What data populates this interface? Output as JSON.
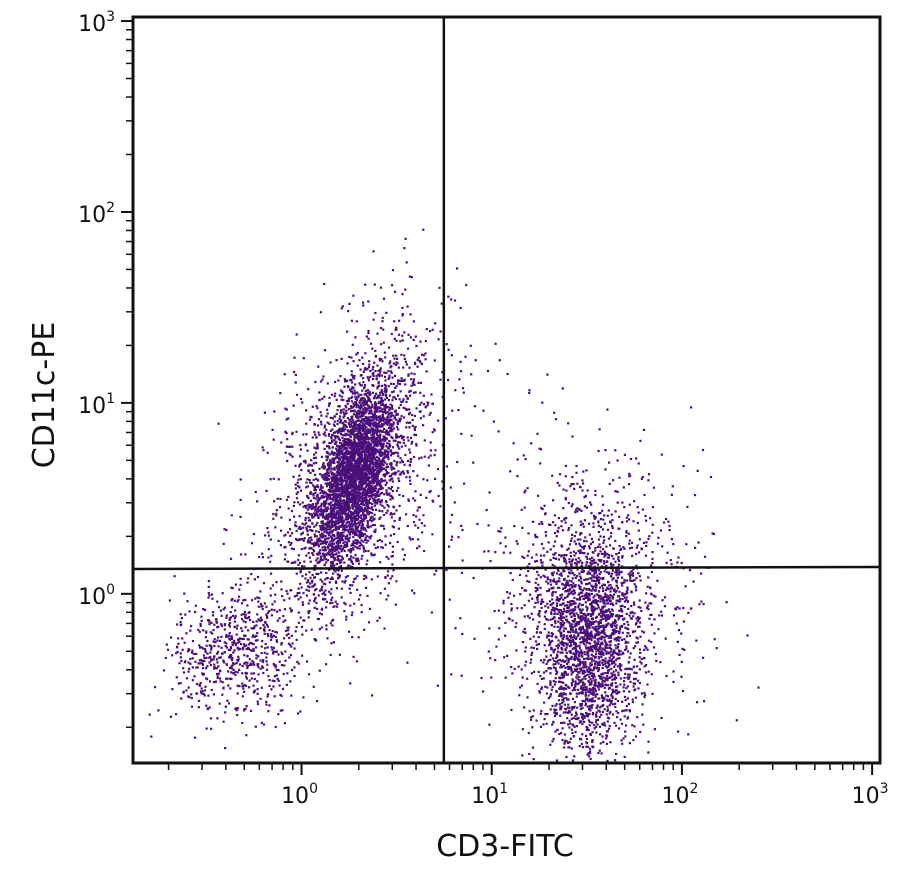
{
  "chart_data": {
    "type": "scatter",
    "subtype": "flow-cytometry-dot-plot",
    "xlabel": "CD3-FITC",
    "ylabel": "CD11c-PE",
    "x_scale": "log",
    "y_scale": "log",
    "xlim": [
      0.13,
      1100
    ],
    "ylim": [
      0.13,
      1050
    ],
    "x_ticks": [
      {
        "value": 1,
        "base": "10",
        "exp": "0"
      },
      {
        "value": 10,
        "base": "10",
        "exp": "1"
      },
      {
        "value": 100,
        "base": "10",
        "exp": "2"
      },
      {
        "value": 1000,
        "base": "10",
        "exp": "3"
      }
    ],
    "y_ticks": [
      {
        "value": 1,
        "base": "10",
        "exp": "0"
      },
      {
        "value": 10,
        "base": "10",
        "exp": "1"
      },
      {
        "value": 100,
        "base": "10",
        "exp": "2"
      },
      {
        "value": 1000,
        "base": "10",
        "exp": "3"
      }
    ],
    "quadrant_gates": {
      "x": 5.6,
      "y": 1.35
    },
    "point_color": "#4b0f7a",
    "grid": false,
    "populations": [
      {
        "center_x": 1.9,
        "center_y": 4.2,
        "spread_log_x": 0.11,
        "spread_log_y": 0.24,
        "corr": 0.55,
        "count": 3200
      },
      {
        "center_x": 1.9,
        "center_y": 4.2,
        "spread_log_x": 0.24,
        "spread_log_y": 0.42,
        "corr": 0.5,
        "count": 1500
      },
      {
        "center_x": 0.45,
        "center_y": 0.5,
        "spread_log_x": 0.17,
        "spread_log_y": 0.17,
        "corr": 0.1,
        "count": 650
      },
      {
        "center_x": 32,
        "center_y": 0.55,
        "spread_log_x": 0.13,
        "spread_log_y": 0.28,
        "corr": 0.0,
        "count": 1900
      },
      {
        "center_x": 32,
        "center_y": 0.9,
        "spread_log_x": 0.27,
        "spread_log_y": 0.36,
        "corr": 0.15,
        "count": 900
      },
      {
        "center_x": 12,
        "center_y": 3.0,
        "spread_log_x": 0.45,
        "spread_log_y": 0.4,
        "corr": 0.0,
        "count": 80
      }
    ]
  }
}
